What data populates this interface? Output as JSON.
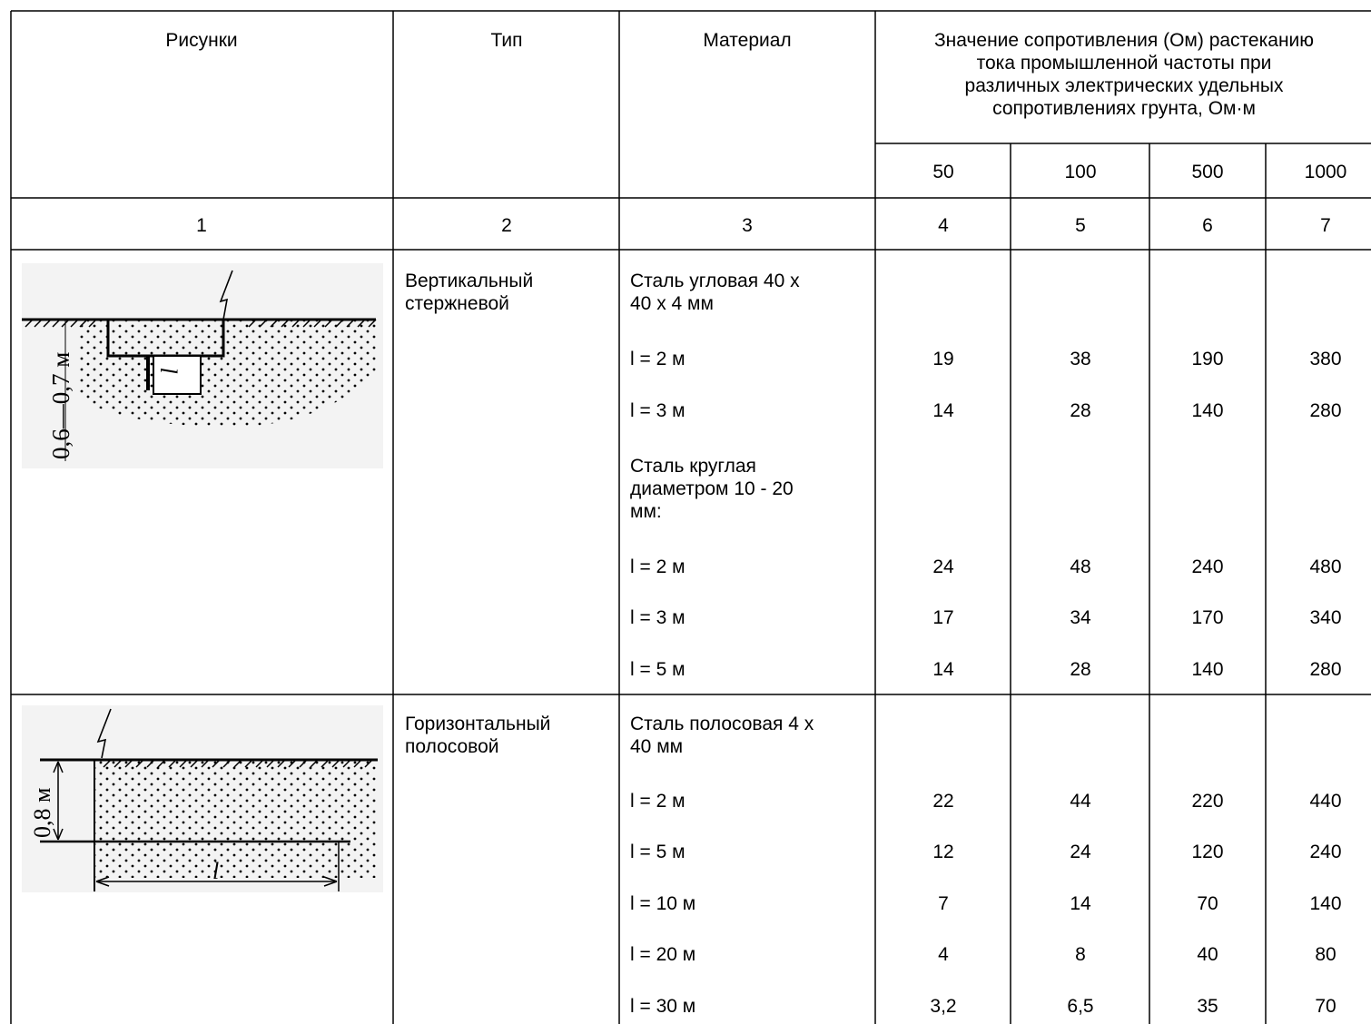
{
  "table": {
    "headers": {
      "col1": "Рисунки",
      "col2": "Тип",
      "col3": "Материал",
      "group": [
        "Значение сопротивления (Ом) растеканию",
        "тока промышленной частоты при",
        "различных электрических удельных",
        "сопротивлениях грунта, Ом·м"
      ],
      "resistivities": [
        "50",
        "100",
        "500",
        "1000"
      ]
    },
    "column_numbers": [
      "1",
      "2",
      "3",
      "4",
      "5",
      "6",
      "7"
    ],
    "sections": [
      {
        "figure_label": "0,6—0,7 м",
        "figure_dim": "l",
        "type": [
          "Вертикальный",
          "стержневой"
        ],
        "rows": [
          {
            "material": [
              "Сталь угловая 40 х",
              "40 х 4 мм"
            ],
            "values": [
              "",
              "",
              "",
              ""
            ]
          },
          {
            "material": [
              "l = 2 м"
            ],
            "values": [
              "19",
              "38",
              "190",
              "380"
            ]
          },
          {
            "material": [
              "l = 3 м"
            ],
            "values": [
              "14",
              "28",
              "140",
              "280"
            ]
          },
          {
            "material": [
              "Сталь круглая",
              "диаметром 10 - 20",
              "мм:"
            ],
            "values": [
              "",
              "",
              "",
              ""
            ]
          },
          {
            "material": [
              "l = 2 м"
            ],
            "values": [
              "24",
              "48",
              "240",
              "480"
            ]
          },
          {
            "material": [
              "l = 3 м"
            ],
            "values": [
              "17",
              "34",
              "170",
              "340"
            ]
          },
          {
            "material": [
              "l = 5 м"
            ],
            "values": [
              "14",
              "28",
              "140",
              "280"
            ]
          }
        ]
      },
      {
        "figure_label": "0,8 м",
        "figure_dim": "l",
        "type": [
          "Горизонтальный",
          "полосовой"
        ],
        "rows": [
          {
            "material": [
              "Сталь полосовая 4 х",
              "40 мм"
            ],
            "values": [
              "",
              "",
              "",
              ""
            ]
          },
          {
            "material": [
              "l = 2 м"
            ],
            "values": [
              "22",
              "44",
              "220",
              "440"
            ]
          },
          {
            "material": [
              "l = 5 м"
            ],
            "values": [
              "12",
              "24",
              "120",
              "240"
            ]
          },
          {
            "material": [
              "l = 10 м"
            ],
            "values": [
              "7",
              "14",
              "70",
              "140"
            ]
          },
          {
            "material": [
              "l = 20 м"
            ],
            "values": [
              "4",
              "8",
              "40",
              "80"
            ]
          },
          {
            "material": [
              "l = 30 м"
            ],
            "values": [
              "3,2",
              "6,5",
              "35",
              "70"
            ]
          }
        ]
      }
    ]
  }
}
